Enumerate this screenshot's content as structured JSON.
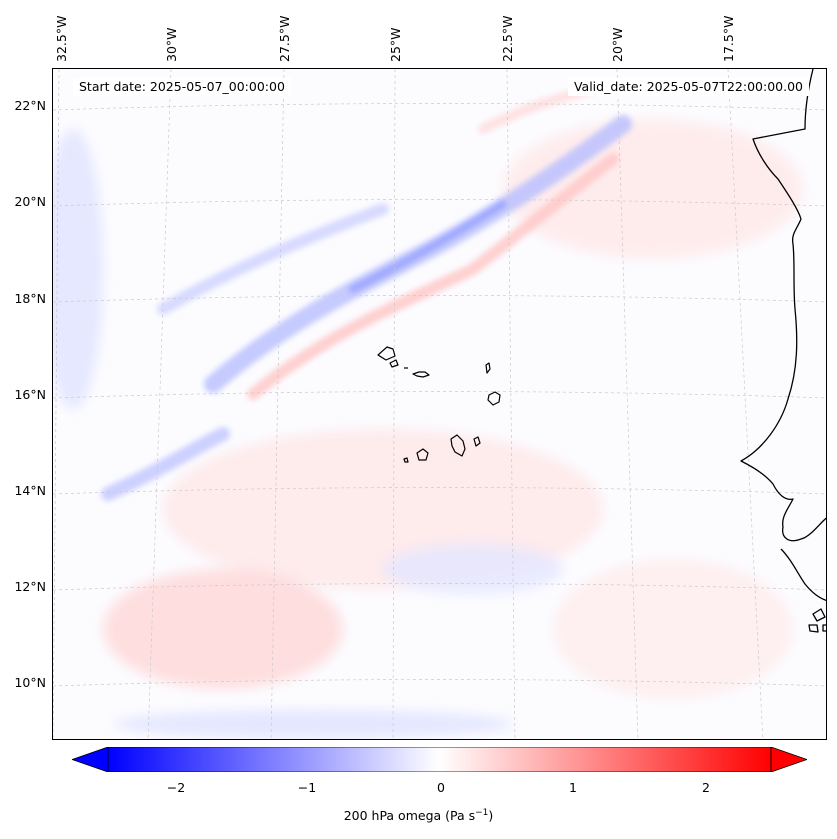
{
  "header": {
    "start_date": "Start date: 2025-05-07_00:00:00",
    "valid_date": "Valid_date: 2025-05-07T22:00:00.00"
  },
  "axes": {
    "lon_labels": [
      "32.5°W",
      "30°W",
      "27.5°W",
      "25°W",
      "22.5°W",
      "20°W",
      "17.5°W"
    ],
    "lat_labels": [
      "22°N",
      "20°N",
      "18°N",
      "16°N",
      "14°N",
      "12°N",
      "10°N"
    ]
  },
  "colorbar": {
    "ticks": [
      "−2",
      "−1",
      "0",
      "1",
      "2"
    ],
    "label_prefix": "200 hPa omega (Pa s",
    "label_sup": "−1",
    "label_suffix": ")",
    "vmin": -2.5,
    "vmax": 2.5,
    "negative_color": "#0000ff",
    "positive_color": "#ff0000"
  },
  "colors": {
    "coastline": "#000000",
    "gridline": "#c9c9c9"
  }
}
